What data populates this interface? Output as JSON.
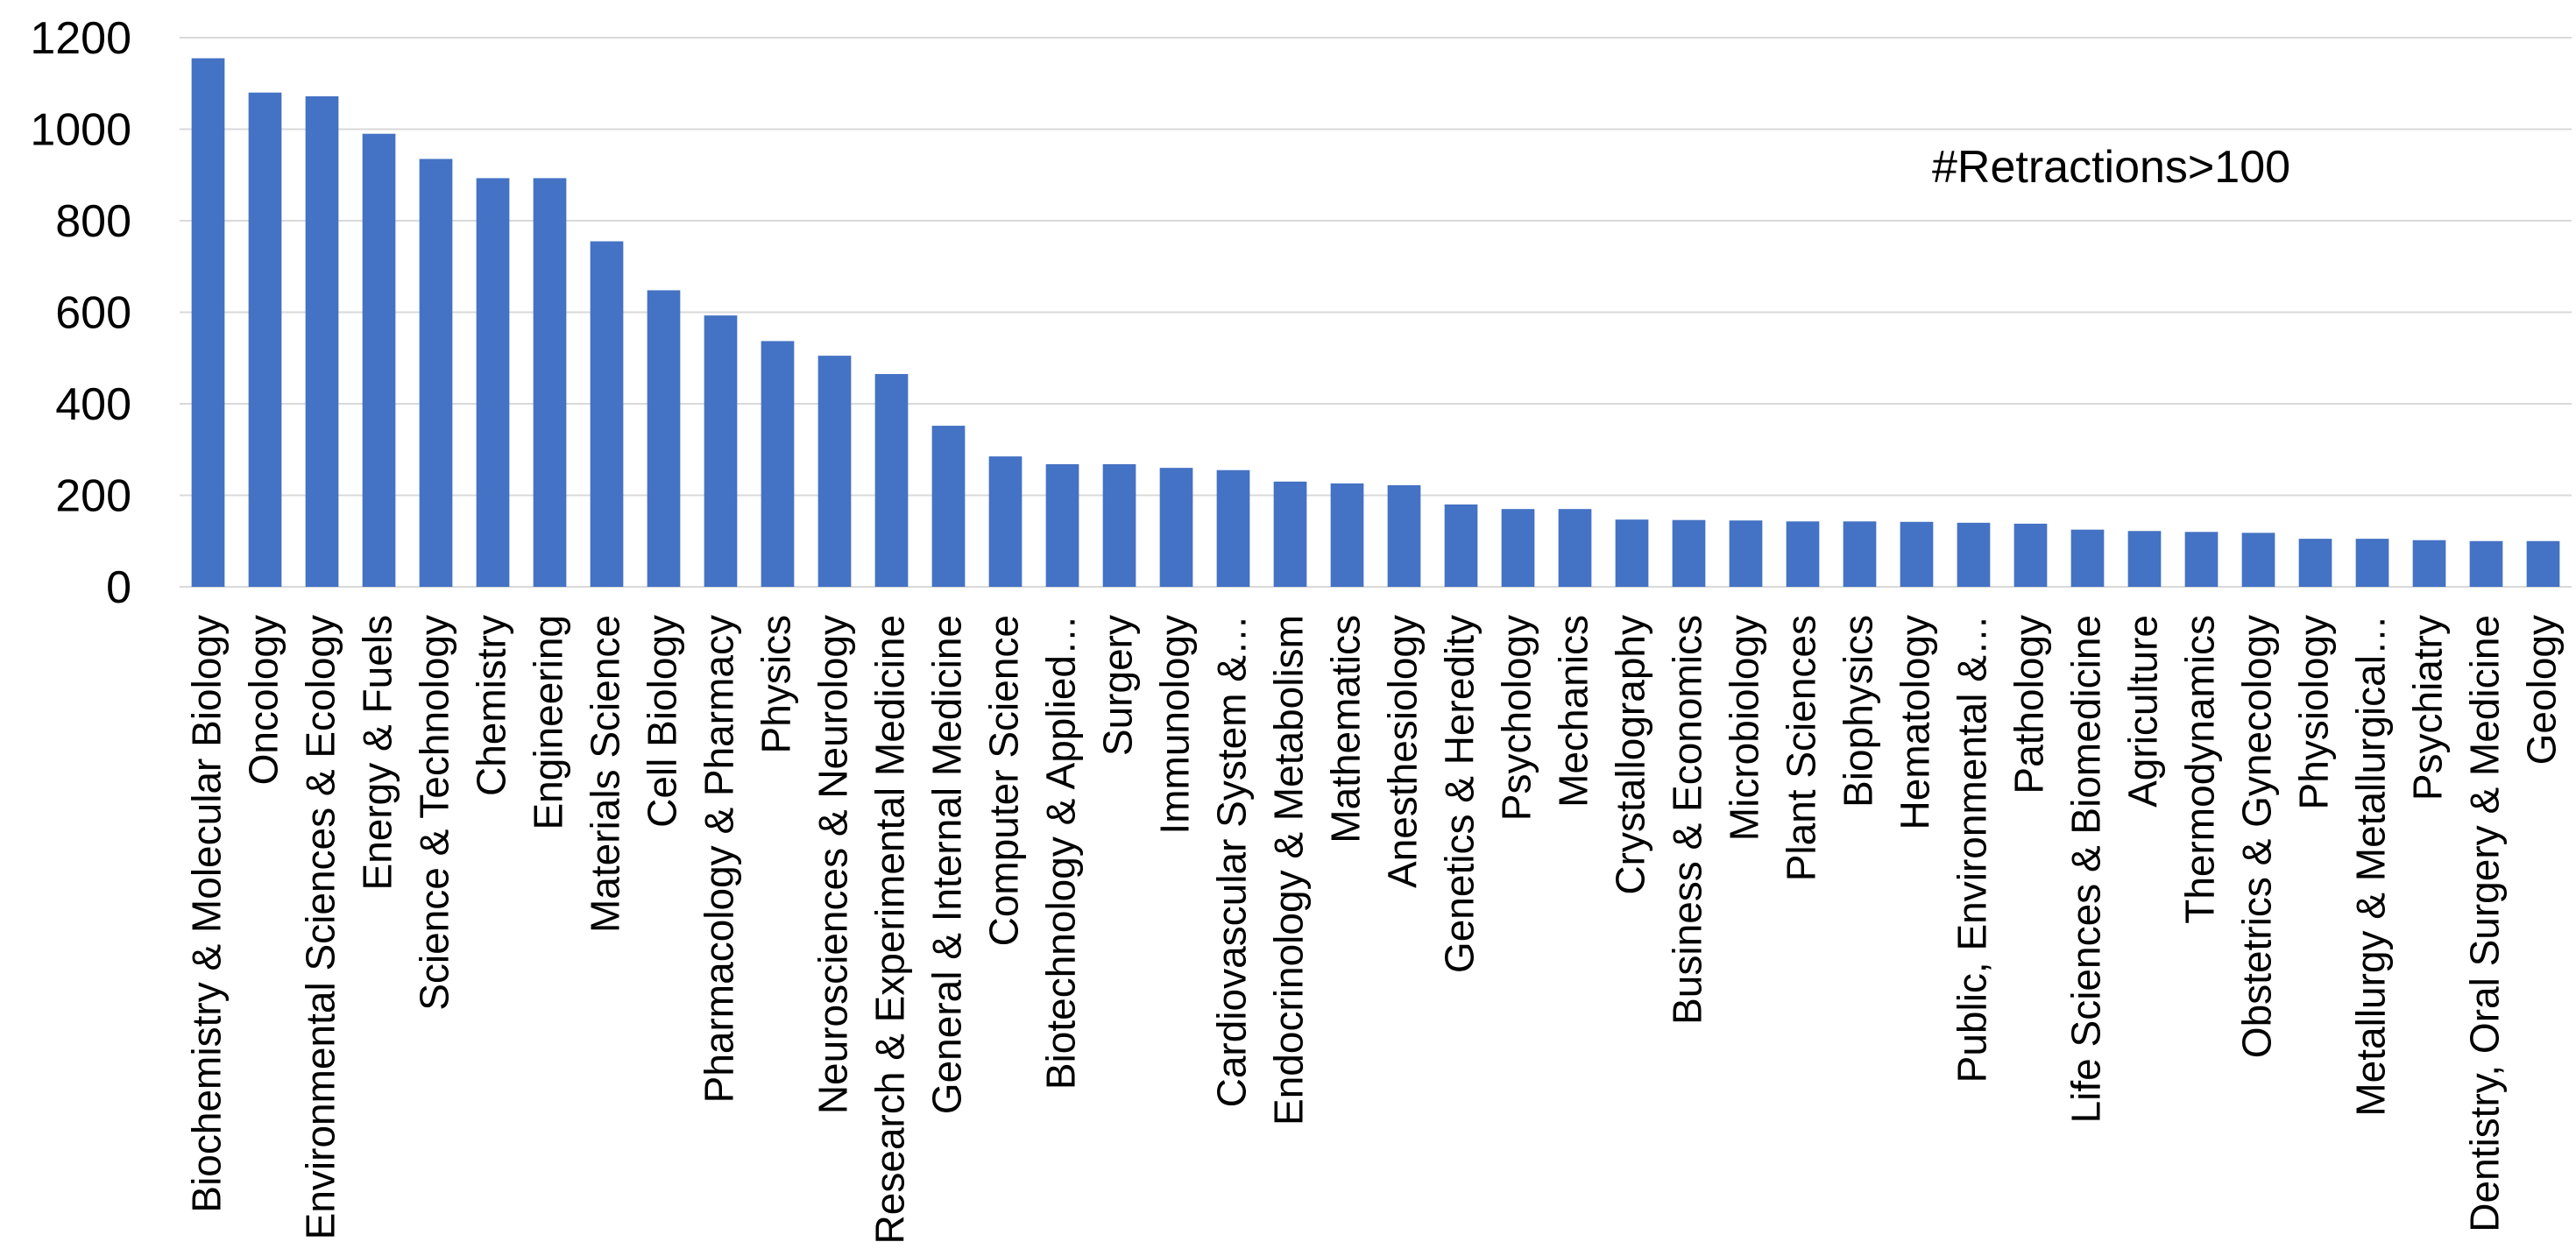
{
  "chart_data": {
    "type": "bar",
    "title": "",
    "xlabel": "",
    "ylabel": "",
    "ylim": [
      0,
      1200
    ],
    "yticks": [
      0,
      200,
      400,
      600,
      800,
      1000,
      1200
    ],
    "grid": true,
    "legend": "none",
    "bar_color": "#4472c4",
    "annotation": "#Retractions>100",
    "categories": [
      "Biochemistry & Molecular Biology",
      "Oncology",
      "Environmental Sciences & Ecology",
      "Energy & Fuels",
      "Science & Technology",
      "Chemistry",
      "Engineering",
      "Materials Science",
      "Cell Biology",
      "Pharmacology & Pharmacy",
      "Physics",
      "Neurosciences & Neurology",
      "Research & Experimental Medicine",
      "General & Internal Medicine",
      "Computer Science",
      "Biotechnology & Applied…",
      "Surgery",
      "Immunology",
      "Cardiovascular System &…",
      "Endocrinology & Metabolism",
      "Mathematics",
      "Anesthesiology",
      "Genetics & Heredity",
      "Psychology",
      "Mechanics",
      "Crystallography",
      "Business & Economics",
      "Microbiology",
      "Plant Sciences",
      "Biophysics",
      "Hematology",
      "Public, Environmental &…",
      "Pathology",
      "Life Sciences & Biomedicine",
      "Agriculture",
      "Thermodynamics",
      "Obstetrics & Gynecology",
      "Physiology",
      "Metallurgy & Metallurgical…",
      "Psychiatry",
      "Dentistry, Oral Surgery & Medicine",
      "Geology"
    ],
    "values": [
      1155,
      1080,
      1072,
      990,
      935,
      893,
      893,
      755,
      648,
      593,
      537,
      505,
      465,
      352,
      285,
      268,
      268,
      260,
      255,
      230,
      226,
      222,
      180,
      170,
      170,
      147,
      146,
      145,
      143,
      143,
      142,
      140,
      138,
      125,
      122,
      120,
      118,
      105,
      105,
      102,
      100,
      100
    ]
  }
}
